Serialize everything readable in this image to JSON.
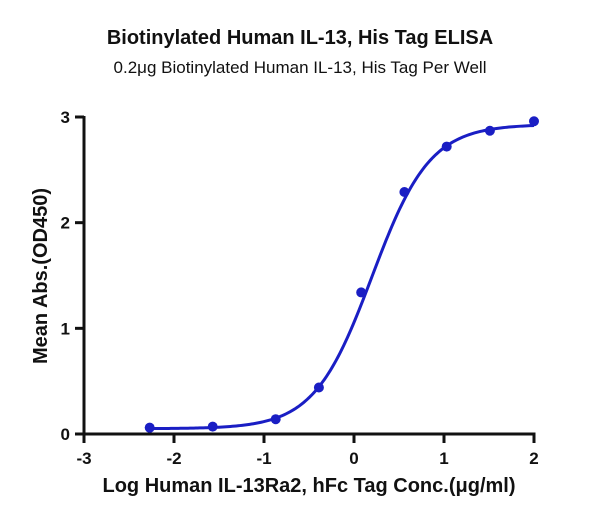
{
  "chart_data": {
    "type": "scatter",
    "title": "Biotinylated Human IL-13, His Tag ELISA",
    "subtitle": "0.2μg Biotinylated Human IL-13, His Tag Per Well",
    "xlabel": "Log Human IL-13Ra2, hFc Tag Conc.(μg/ml)",
    "ylabel": "Mean Abs.(OD450)",
    "xlim": [
      -3,
      2
    ],
    "ylim": [
      0,
      3
    ],
    "xticks": [
      -3,
      -2,
      -1,
      0,
      1,
      2
    ],
    "yticks": [
      0,
      1,
      2,
      3
    ],
    "grid": false,
    "legend": null,
    "series": [
      {
        "name": "Mean Abs.(OD450)",
        "color": "#1a1ec4",
        "x": [
          -2.27,
          -1.57,
          -0.87,
          -0.39,
          0.08,
          0.56,
          1.03,
          1.51,
          2.0
        ],
        "y": [
          0.06,
          0.07,
          0.14,
          0.44,
          1.34,
          2.29,
          2.72,
          2.87,
          2.96
        ]
      }
    ],
    "fit": {
      "model": "4PL sigmoid",
      "bottom": 0.05,
      "top": 2.93,
      "logEC50": 0.2,
      "hill": 1.35,
      "x_range": [
        -2.27,
        2.0
      ]
    }
  }
}
